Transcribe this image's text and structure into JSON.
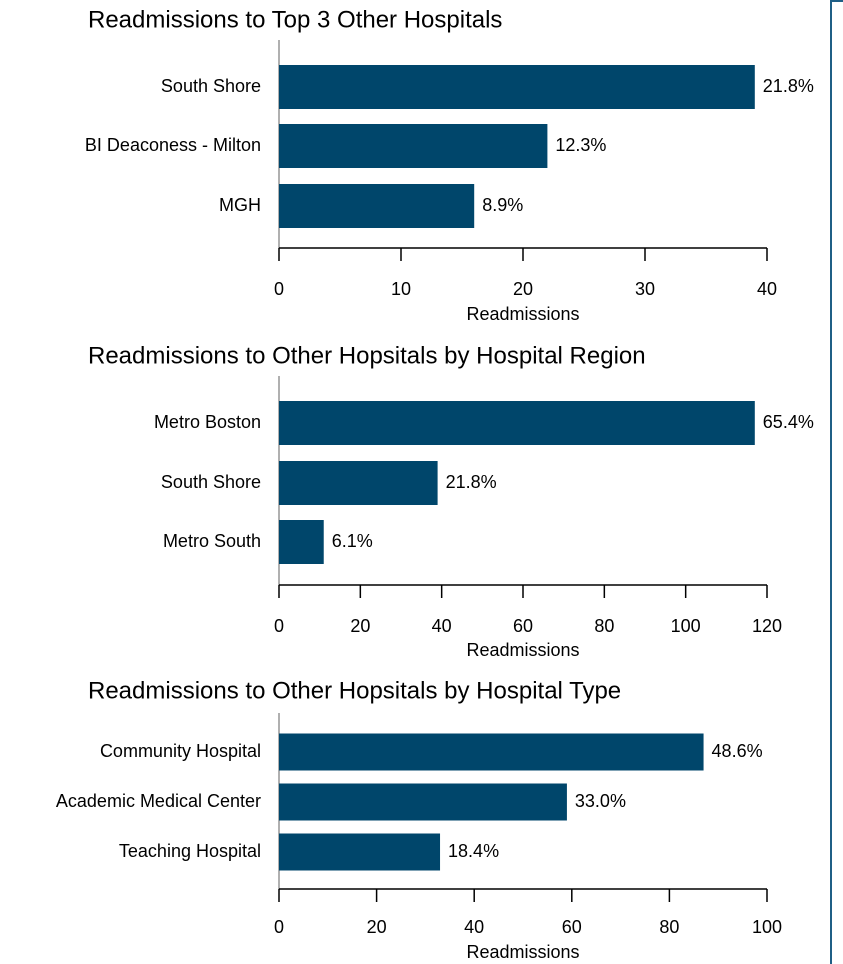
{
  "chart_data": [
    {
      "type": "bar",
      "title": "Readmissions to Top 3 Other Hospitals",
      "categories": [
        "South Shore",
        "BI Deaconess - Milton",
        "MGH"
      ],
      "values": [
        39,
        22,
        16
      ],
      "data_labels": [
        "21.8%",
        "12.3%",
        "8.9%"
      ],
      "xlabel": "Readmissions",
      "xlim": [
        0,
        40
      ],
      "xticks": [
        0,
        10,
        20,
        30,
        40
      ],
      "color": "#00466b"
    },
    {
      "type": "bar",
      "title": "Readmissions to Other Hopsitals by Hospital Region",
      "categories": [
        "Metro Boston",
        "South Shore",
        "Metro South"
      ],
      "values": [
        117,
        39,
        11
      ],
      "data_labels": [
        "65.4%",
        "21.8%",
        "6.1%"
      ],
      "xlabel": "Readmissions",
      "xlim": [
        0,
        120
      ],
      "xticks": [
        0,
        20,
        40,
        60,
        80,
        100,
        120
      ],
      "color": "#00466b"
    },
    {
      "type": "bar",
      "title": "Readmissions to Other Hopsitals by Hospital Type",
      "categories": [
        "Community Hospital",
        "Academic Medical Center",
        "Teaching Hospital"
      ],
      "values": [
        87,
        59,
        33
      ],
      "data_labels": [
        "48.6%",
        "33.0%",
        "18.4%"
      ],
      "xlabel": "Readmissions",
      "xlim": [
        0,
        100
      ],
      "xticks": [
        0,
        20,
        40,
        60,
        80,
        100
      ],
      "color": "#00466b"
    }
  ]
}
